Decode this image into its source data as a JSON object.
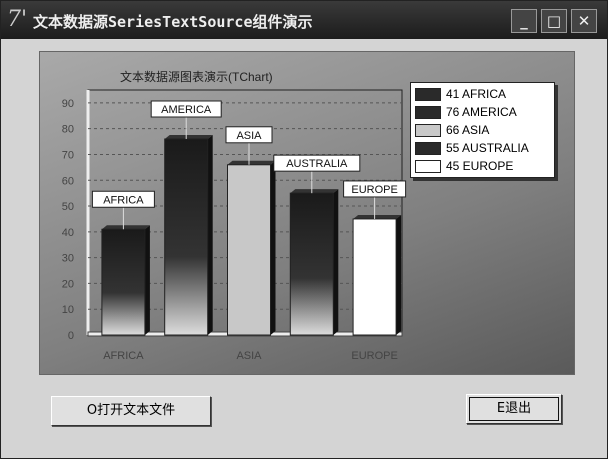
{
  "window": {
    "icon": "7'",
    "title": "文本数据源SeriesTextSource组件演示",
    "controls": [
      "minimize",
      "maximize",
      "close"
    ]
  },
  "buttons": {
    "open_label": "O打开文本文件",
    "exit_label": "E退出"
  },
  "chart_data": {
    "type": "bar",
    "title": "文本数据源图表演示(TChart)",
    "categories": [
      "AFRICA",
      "AMERICA",
      "ASIA",
      "AUSTRALIA",
      "EUROPE"
    ],
    "values": [
      41,
      76,
      66,
      55,
      45
    ],
    "xtick_labels": [
      "AFRICA",
      "ASIA",
      "EUROPE"
    ],
    "yticks": [
      0,
      10,
      20,
      30,
      40,
      50,
      60,
      70,
      80,
      90
    ],
    "ylim": [
      0,
      95
    ],
    "grid": true,
    "legend": {
      "placement": "top-right",
      "entries": [
        "41 AFRICA",
        "76 AMERICA",
        "66 ASIA",
        "55 AUSTRALIA",
        "45 EUROPE"
      ]
    },
    "colors": [
      "#2a2a2a",
      "#2a2a2a",
      "#c8c8c8",
      "#2a2a2a",
      "#ffffff"
    ]
  }
}
